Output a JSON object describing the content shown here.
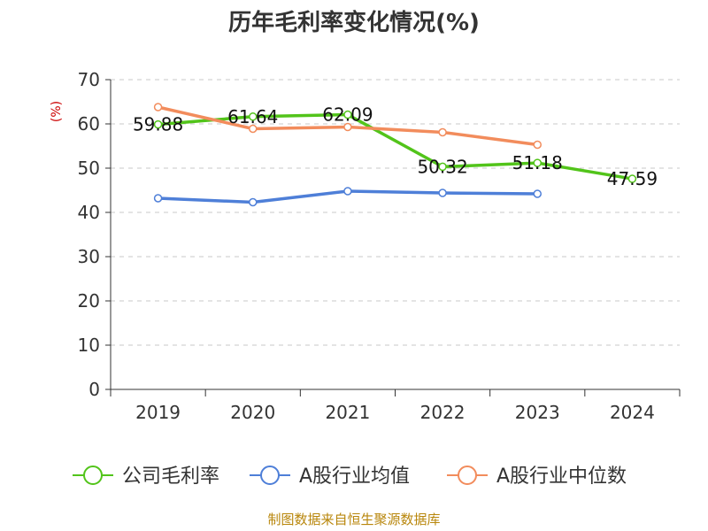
{
  "chart_data": {
    "type": "line",
    "title": "历年毛利率变化情况(%)",
    "ylabel": "(%)",
    "xlabel": "",
    "categories": [
      "2019",
      "2020",
      "2021",
      "2022",
      "2023",
      "2024"
    ],
    "ylim": [
      0,
      70
    ],
    "yticks": [
      "0",
      "10",
      "20",
      "30",
      "40",
      "50",
      "60",
      "70"
    ],
    "grid": "horizontal-dashed",
    "legend_position": "bottom",
    "series": [
      {
        "name": "公司毛利率",
        "color": "#52c41a",
        "values": [
          59.88,
          61.64,
          62.09,
          50.32,
          51.18,
          47.59
        ],
        "labels": [
          "59.88",
          "61.64",
          "62.09",
          "50.32",
          "51.18",
          "47.59"
        ]
      },
      {
        "name": "A股行业均值",
        "color": "#4e7fd8",
        "values": [
          43.2,
          42.3,
          44.8,
          44.4,
          44.2,
          null
        ]
      },
      {
        "name": "A股行业中位数",
        "color": "#f28c5c",
        "values": [
          63.8,
          58.9,
          59.3,
          58.1,
          55.3,
          null
        ]
      }
    ]
  },
  "source": "制图数据来自恒生聚源数据库"
}
